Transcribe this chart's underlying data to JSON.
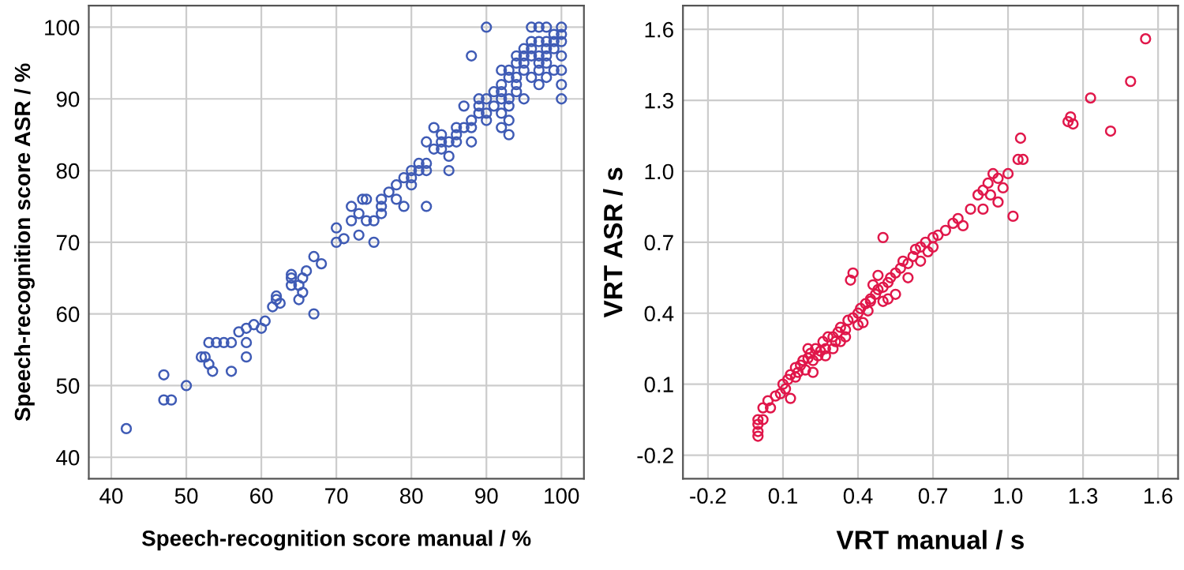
{
  "chart_data": [
    {
      "type": "scatter",
      "xlabel": "Speech-recognition score manual / %",
      "ylabel": "Speech-recognition score ASR / %",
      "xlim": [
        37,
        103
      ],
      "ylim": [
        37,
        103
      ],
      "xticks": [
        40,
        50,
        60,
        70,
        80,
        90,
        100
      ],
      "yticks": [
        40,
        50,
        60,
        70,
        80,
        90,
        100
      ],
      "grid": true,
      "marker": "circle",
      "legend": false,
      "series": [
        {
          "color": "#3f5bb5",
          "x": [
            42,
            47,
            47,
            48,
            50,
            52,
            53,
            52.5,
            53,
            53.5,
            54,
            55,
            56,
            56,
            57,
            58,
            58,
            58,
            59,
            60,
            60.5,
            61.5,
            62,
            62,
            62.5,
            64,
            64,
            64,
            65,
            65,
            65.5,
            65.5,
            66,
            67,
            67,
            68,
            70,
            70,
            71,
            72,
            72,
            73,
            73,
            74,
            73.5,
            74,
            75,
            76,
            76,
            77,
            78,
            79,
            80,
            79,
            80,
            81,
            81,
            82,
            82,
            82,
            83,
            84,
            84,
            85,
            85,
            86,
            86,
            88,
            88,
            87,
            88,
            89,
            89,
            90,
            90,
            90,
            91,
            91,
            90,
            88,
            92,
            92,
            93,
            93,
            92,
            92,
            93,
            93,
            94,
            94,
            95,
            95,
            96,
            96,
            97,
            97,
            97,
            98,
            98,
            98,
            98,
            99,
            99,
            99,
            96,
            98,
            100,
            100,
            100,
            100,
            100,
            100,
            97,
            95,
            94,
            93,
            96,
            97,
            95,
            94,
            89,
            85,
            92,
            86,
            87,
            78,
            76,
            75,
            84,
            83,
            82,
            80,
            94,
            98,
            99,
            100,
            96,
            97,
            95,
            93,
            92
          ],
          "values": [
            44,
            51.5,
            48,
            48,
            50,
            54,
            56,
            54,
            53,
            52,
            56,
            56,
            56,
            52,
            57.5,
            58,
            56,
            54,
            58.5,
            58,
            59,
            61,
            62.5,
            62,
            61.5,
            65.5,
            65,
            64,
            64,
            62,
            63,
            65,
            66,
            68,
            60,
            67,
            70,
            72,
            70.5,
            73,
            75,
            71,
            74,
            73,
            76,
            76,
            70,
            74,
            76,
            77,
            76,
            79,
            80,
            75,
            78,
            80,
            81,
            75,
            80,
            84,
            83,
            83,
            84,
            82,
            84,
            84,
            85,
            86,
            84,
            86,
            87,
            88,
            90,
            87,
            88,
            90,
            91,
            89,
            100,
            96,
            90,
            91,
            90,
            89,
            88,
            86,
            85,
            87,
            93,
            92,
            95,
            94,
            96,
            93,
            96,
            95,
            94,
            98,
            97,
            96,
            95,
            97,
            94,
            98,
            100,
            100,
            100,
            98,
            96,
            94,
            92,
            90,
            100,
            97,
            95,
            94,
            97,
            92,
            90,
            91,
            89,
            80,
            92,
            86,
            89,
            78,
            75,
            73,
            85,
            86,
            81,
            79,
            96,
            93,
            99,
            99,
            98,
            98,
            96,
            93,
            94
          ]
        }
      ]
    },
    {
      "type": "scatter",
      "xlabel": "VRT manual / s",
      "ylabel": "VRT ASR / s",
      "xlim": [
        -0.3,
        1.68
      ],
      "ylim": [
        -0.3,
        1.7
      ],
      "xticks": [
        {
          "value": -0.2,
          "label": "-0.2"
        },
        0.1,
        0.4,
        0.7,
        {
          "value": 1,
          "label": "1.0"
        },
        1.3,
        1.6
      ],
      "yticks": [
        {
          "value": -0.2,
          "label": "-0.2"
        },
        0.1,
        0.4,
        0.7,
        {
          "value": 1,
          "label": "1.0"
        },
        1.3,
        1.6
      ],
      "grid": true,
      "marker": "circle",
      "legend": false,
      "series": [
        {
          "color": "#e0174a",
          "x": [
            0,
            0,
            0,
            0,
            0.02,
            0.02,
            0.05,
            0.04,
            0.07,
            0.09,
            0.1,
            0.12,
            0.13,
            0.15,
            0.11,
            0.16,
            0.17,
            0.18,
            0.2,
            0.19,
            0.21,
            0.22,
            0.23,
            0.24,
            0.25,
            0.26,
            0.27,
            0.28,
            0.3,
            0.31,
            0.32,
            0.33,
            0.35,
            0.36,
            0.38,
            0.4,
            0.41,
            0.43,
            0.44,
            0.45,
            0.47,
            0.48,
            0.5,
            0.52,
            0.53,
            0.55,
            0.57,
            0.58,
            0.6,
            0.62,
            0.63,
            0.65,
            0.67,
            0.7,
            0.68,
            0.72,
            0.75,
            0.78,
            0.8,
            0.82,
            0.85,
            0.88,
            0.9,
            0.92,
            0.94,
            0.96,
            0.98,
            1.0,
            1.02,
            1.04,
            1.05,
            1.06,
            1.24,
            1.25,
            1.26,
            1.33,
            1.41,
            1.49,
            1.55,
            0.5,
            0.37,
            0.38,
            0.13,
            0.46,
            0.3,
            0.35,
            0.27,
            0.22,
            0.42,
            0.55,
            0.6,
            0.45,
            0.5,
            0.4,
            0.2,
            0.15,
            0.33,
            0.48,
            0.52,
            0.65,
            0.7,
            0.9,
            0.93,
            0.96
          ],
          "values": [
            -0.12,
            -0.1,
            -0.07,
            -0.05,
            -0.05,
            0.0,
            0.0,
            0.03,
            0.05,
            0.06,
            0.1,
            0.12,
            0.14,
            0.13,
            0.08,
            0.15,
            0.18,
            0.2,
            0.21,
            0.16,
            0.23,
            0.2,
            0.25,
            0.22,
            0.24,
            0.28,
            0.25,
            0.3,
            0.3,
            0.28,
            0.32,
            0.34,
            0.33,
            0.37,
            0.38,
            0.4,
            0.42,
            0.44,
            0.41,
            0.46,
            0.48,
            0.5,
            0.51,
            0.53,
            0.55,
            0.57,
            0.59,
            0.62,
            0.61,
            0.64,
            0.67,
            0.68,
            0.7,
            0.72,
            0.66,
            0.73,
            0.75,
            0.78,
            0.8,
            0.77,
            0.84,
            0.9,
            0.92,
            0.95,
            0.99,
            0.87,
            0.93,
            0.99,
            0.81,
            1.05,
            1.14,
            1.05,
            1.21,
            1.23,
            1.2,
            1.31,
            1.17,
            1.38,
            1.56,
            0.72,
            0.54,
            0.57,
            0.04,
            0.52,
            0.25,
            0.3,
            0.22,
            0.15,
            0.36,
            0.48,
            0.55,
            0.45,
            0.45,
            0.35,
            0.25,
            0.17,
            0.28,
            0.56,
            0.46,
            0.62,
            0.68,
            0.84,
            0.9,
            0.97
          ]
        }
      ]
    }
  ]
}
